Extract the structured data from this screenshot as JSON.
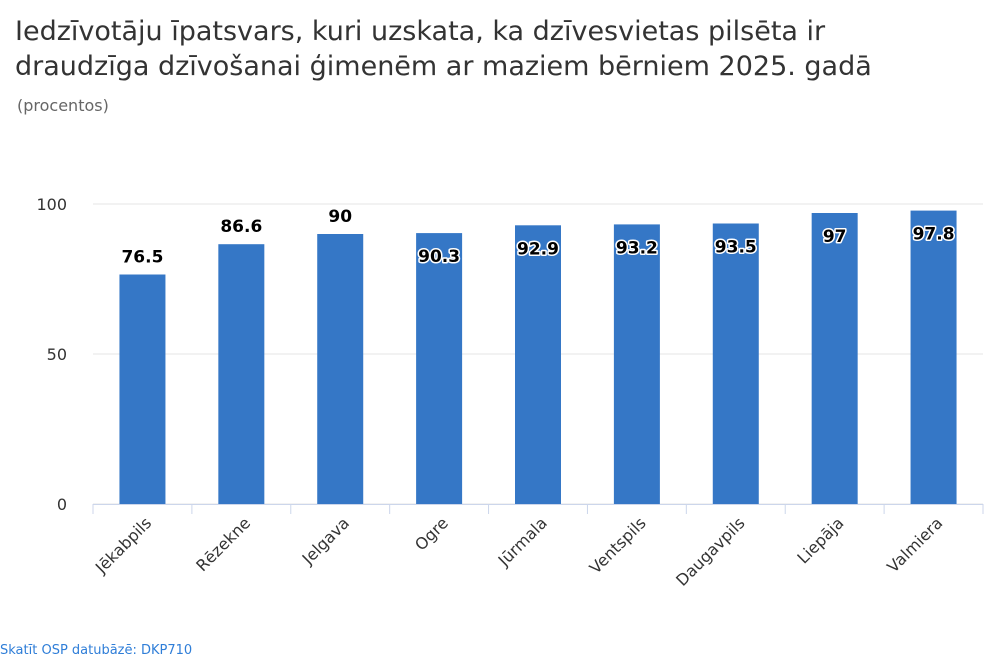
{
  "title_line1": "Iedzīvotāju īpatsvars, kuri uzskata, ka dzīvesvietas pilsēta ir",
  "title_line2": "draudzīga dzīvošanai ģimenēm ar maziem bērniem 2025. gadā",
  "subtitle": "(procentos)",
  "source_link": "Skatīt OSP datubāzē: DKP710",
  "colors": {
    "bar": "#3577c6",
    "grid": "#e6e6e6",
    "axis_text": "#333333",
    "label_text": "#000000"
  },
  "chart_data": {
    "type": "bar",
    "title": "Iedzīvotāju īpatsvars, kuri uzskata, ka dzīvesvietas pilsēta ir draudzīga dzīvošanai ģimenēm ar maziem bērniem 2025. gadā",
    "subtitle": "(procentos)",
    "categories": [
      "Jēkabpils",
      "Rēzekne",
      "Jelgava",
      "Ogre",
      "Jūrmala",
      "Ventspils",
      "Daugavpils",
      "Liepāja",
      "Valmiera"
    ],
    "values": [
      76.5,
      86.6,
      90,
      90.3,
      92.9,
      93.2,
      93.5,
      97,
      97.8
    ],
    "labels": [
      "76.5",
      "86.6",
      "90",
      "90.3",
      "92.9",
      "93.2",
      "93.5",
      "97",
      "97.8"
    ],
    "inside_label_from_index": 3,
    "y_ticks": [
      0,
      50,
      100
    ],
    "ylim": [
      0,
      100
    ],
    "xlabel": "",
    "ylabel": "",
    "grid": true,
    "legend": "none"
  }
}
